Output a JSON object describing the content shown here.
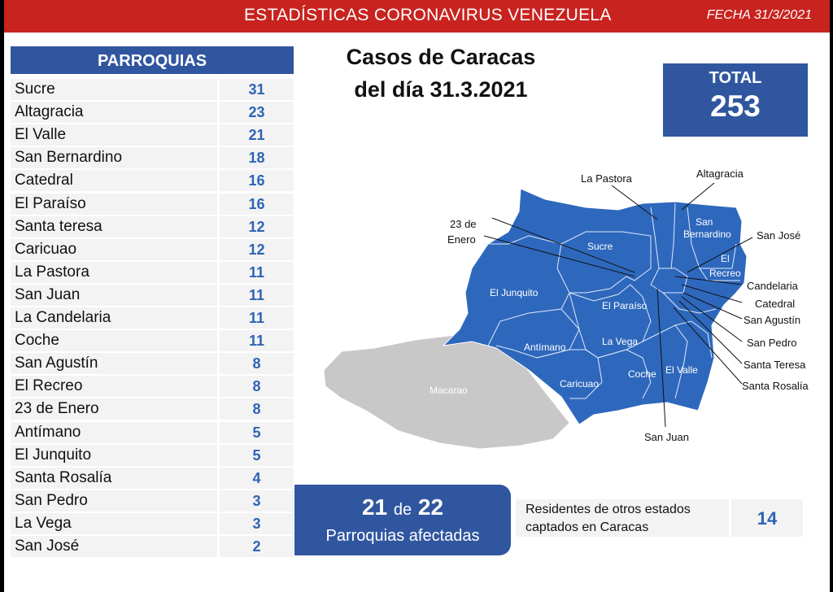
{
  "header": {
    "title": "ESTADÍSTICAS CORONAVIRUS VENEZUELA",
    "date": "FECHA 31/3/2021"
  },
  "chart_data": {
    "type": "table",
    "title": "Casos de Caracas del día 31.3.2021",
    "column_header": "PARROQUIAS",
    "categories": [
      "Sucre",
      "Altagracia",
      "El Valle",
      "San Bernardino",
      "Catedral",
      "El Paraíso",
      "Santa teresa",
      "Caricuao",
      "La Pastora",
      "San Juan",
      "La Candelaria",
      "Coche",
      "San Agustín",
      "El Recreo",
      "23 de Enero",
      "Antímano",
      "El Junquito",
      "Santa Rosalía",
      "San Pedro",
      "La Vega",
      "San José"
    ],
    "values": [
      31,
      23,
      21,
      18,
      16,
      16,
      12,
      12,
      11,
      11,
      11,
      11,
      8,
      8,
      8,
      5,
      5,
      4,
      3,
      3,
      2
    ]
  },
  "title_lines": [
    "Casos de Caracas",
    "del día 31.3.2021"
  ],
  "total": {
    "label": "TOTAL",
    "value": "253"
  },
  "affected": {
    "count": "21",
    "of_word": "de",
    "total": "22",
    "label": "Parroquias afectadas"
  },
  "residents": {
    "line1": "Residentes de otros estados",
    "line2": "captados en Caracas",
    "value": "14"
  },
  "map": {
    "fill_affected": "#2e68bd",
    "fill_unaffected": "#c8c8c8",
    "outside_labels": [
      "La Pastora",
      "Altagracia",
      "23 de",
      "Enero",
      "San José",
      "Candelaria",
      "Catedral",
      "San Agustín",
      "San Pedro",
      "Santa Teresa",
      "Santa Rosalía",
      "San Juan"
    ],
    "inside_labels": [
      "San",
      "Bernardino",
      "El",
      "Recreo",
      "Sucre",
      "El Junquito",
      "El Paraíso",
      "Antímano",
      "La Vega",
      "Caricuao",
      "Coche",
      "El Valle",
      "Macarao"
    ]
  },
  "colors": {
    "header_red": "#c8231f",
    "panel_blue": "#30569f",
    "value_blue": "#2e63b5"
  }
}
